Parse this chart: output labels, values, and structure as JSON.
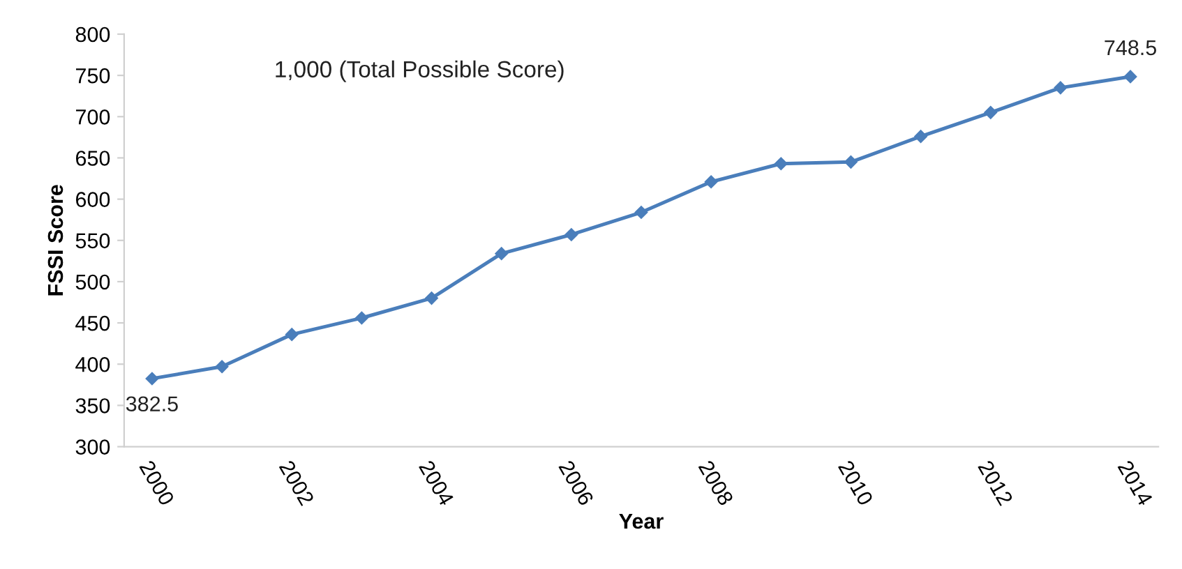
{
  "chart_data": {
    "type": "line",
    "xlabel": "Year",
    "ylabel": "FSSI Score",
    "x": [
      2000,
      2001,
      2002,
      2003,
      2004,
      2005,
      2006,
      2007,
      2008,
      2009,
      2010,
      2011,
      2012,
      2013,
      2014
    ],
    "series": [
      {
        "color": "#4a7ebb",
        "values": [
          382.5,
          397,
          436,
          456,
          480,
          534,
          557,
          584,
          621,
          643,
          645,
          676,
          705,
          735,
          748.5
        ],
        "value_labels": [
          "382.5",
          null,
          null,
          null,
          null,
          null,
          null,
          null,
          null,
          null,
          null,
          null,
          null,
          null,
          "748.5"
        ]
      }
    ],
    "annotations": [
      "1,000 (Total Possible Score)"
    ],
    "xlim": [
      1999.6,
      2014.4
    ],
    "xticks": [
      2000,
      2002,
      2004,
      2006,
      2008,
      2010,
      2012,
      2014
    ],
    "ylim": [
      300,
      800
    ],
    "yticks": [
      300,
      350,
      400,
      450,
      500,
      550,
      600,
      650,
      700,
      750,
      800
    ],
    "grid": false,
    "legend": false,
    "marker": "diamond",
    "line_style": "solid"
  }
}
